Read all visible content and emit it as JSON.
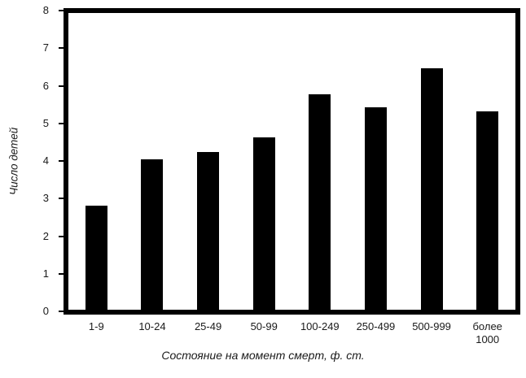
{
  "chart_data": {
    "type": "bar",
    "title": "",
    "categories": [
      "1-9",
      "10-24",
      "25-49",
      "50-99",
      "100-249",
      "250-499",
      "500-999",
      "более 1000"
    ],
    "values": [
      2.8,
      4.05,
      4.25,
      4.65,
      5.8,
      5.45,
      6.5,
      5.35
    ],
    "xlabel": "Состояние на момент смерт, ф. ст.",
    "ylabel": "Число детей",
    "ylim": [
      0,
      8
    ],
    "yticks": [
      0,
      1,
      2,
      3,
      4,
      5,
      6,
      7,
      8
    ],
    "grid": false,
    "legend": null,
    "bar_color": "#000000",
    "axis_color": "#000000",
    "text_color": "#1a1a1a",
    "background": "#ffffff"
  }
}
